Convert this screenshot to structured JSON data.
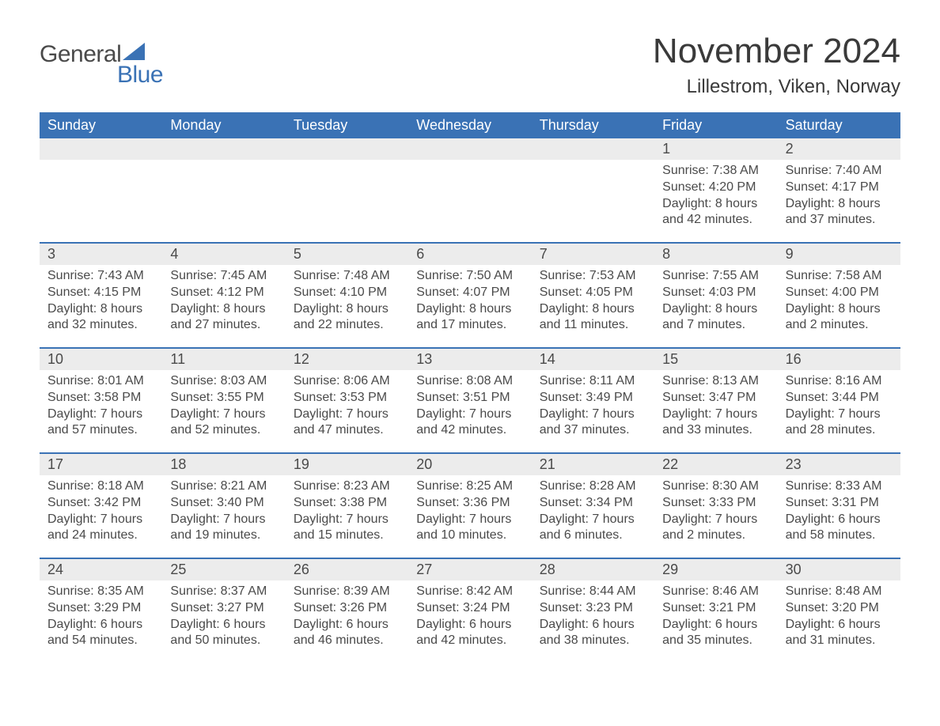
{
  "logo": {
    "text1": "General",
    "text2": "Blue",
    "icon_color": "#3a72b5"
  },
  "title": "November 2024",
  "location": "Lillestrom, Viken, Norway",
  "colors": {
    "header_bg": "#3a72b5",
    "header_text": "#ffffff",
    "daynum_bg": "#ececec",
    "text": "#4a4a4a",
    "rule": "#3a72b5",
    "background": "#ffffff"
  },
  "typography": {
    "title_fontsize": 44,
    "location_fontsize": 24,
    "header_fontsize": 18,
    "daynum_fontsize": 18,
    "body_fontsize": 16
  },
  "layout": {
    "columns": 7,
    "rows": 5
  },
  "day_headers": [
    "Sunday",
    "Monday",
    "Tuesday",
    "Wednesday",
    "Thursday",
    "Friday",
    "Saturday"
  ],
  "weeks": [
    [
      {
        "n": "",
        "sunrise": "",
        "sunset": "",
        "daylight": ""
      },
      {
        "n": "",
        "sunrise": "",
        "sunset": "",
        "daylight": ""
      },
      {
        "n": "",
        "sunrise": "",
        "sunset": "",
        "daylight": ""
      },
      {
        "n": "",
        "sunrise": "",
        "sunset": "",
        "daylight": ""
      },
      {
        "n": "",
        "sunrise": "",
        "sunset": "",
        "daylight": ""
      },
      {
        "n": "1",
        "sunrise": "Sunrise: 7:38 AM",
        "sunset": "Sunset: 4:20 PM",
        "daylight": "Daylight: 8 hours and 42 minutes."
      },
      {
        "n": "2",
        "sunrise": "Sunrise: 7:40 AM",
        "sunset": "Sunset: 4:17 PM",
        "daylight": "Daylight: 8 hours and 37 minutes."
      }
    ],
    [
      {
        "n": "3",
        "sunrise": "Sunrise: 7:43 AM",
        "sunset": "Sunset: 4:15 PM",
        "daylight": "Daylight: 8 hours and 32 minutes."
      },
      {
        "n": "4",
        "sunrise": "Sunrise: 7:45 AM",
        "sunset": "Sunset: 4:12 PM",
        "daylight": "Daylight: 8 hours and 27 minutes."
      },
      {
        "n": "5",
        "sunrise": "Sunrise: 7:48 AM",
        "sunset": "Sunset: 4:10 PM",
        "daylight": "Daylight: 8 hours and 22 minutes."
      },
      {
        "n": "6",
        "sunrise": "Sunrise: 7:50 AM",
        "sunset": "Sunset: 4:07 PM",
        "daylight": "Daylight: 8 hours and 17 minutes."
      },
      {
        "n": "7",
        "sunrise": "Sunrise: 7:53 AM",
        "sunset": "Sunset: 4:05 PM",
        "daylight": "Daylight: 8 hours and 11 minutes."
      },
      {
        "n": "8",
        "sunrise": "Sunrise: 7:55 AM",
        "sunset": "Sunset: 4:03 PM",
        "daylight": "Daylight: 8 hours and 7 minutes."
      },
      {
        "n": "9",
        "sunrise": "Sunrise: 7:58 AM",
        "sunset": "Sunset: 4:00 PM",
        "daylight": "Daylight: 8 hours and 2 minutes."
      }
    ],
    [
      {
        "n": "10",
        "sunrise": "Sunrise: 8:01 AM",
        "sunset": "Sunset: 3:58 PM",
        "daylight": "Daylight: 7 hours and 57 minutes."
      },
      {
        "n": "11",
        "sunrise": "Sunrise: 8:03 AM",
        "sunset": "Sunset: 3:55 PM",
        "daylight": "Daylight: 7 hours and 52 minutes."
      },
      {
        "n": "12",
        "sunrise": "Sunrise: 8:06 AM",
        "sunset": "Sunset: 3:53 PM",
        "daylight": "Daylight: 7 hours and 47 minutes."
      },
      {
        "n": "13",
        "sunrise": "Sunrise: 8:08 AM",
        "sunset": "Sunset: 3:51 PM",
        "daylight": "Daylight: 7 hours and 42 minutes."
      },
      {
        "n": "14",
        "sunrise": "Sunrise: 8:11 AM",
        "sunset": "Sunset: 3:49 PM",
        "daylight": "Daylight: 7 hours and 37 minutes."
      },
      {
        "n": "15",
        "sunrise": "Sunrise: 8:13 AM",
        "sunset": "Sunset: 3:47 PM",
        "daylight": "Daylight: 7 hours and 33 minutes."
      },
      {
        "n": "16",
        "sunrise": "Sunrise: 8:16 AM",
        "sunset": "Sunset: 3:44 PM",
        "daylight": "Daylight: 7 hours and 28 minutes."
      }
    ],
    [
      {
        "n": "17",
        "sunrise": "Sunrise: 8:18 AM",
        "sunset": "Sunset: 3:42 PM",
        "daylight": "Daylight: 7 hours and 24 minutes."
      },
      {
        "n": "18",
        "sunrise": "Sunrise: 8:21 AM",
        "sunset": "Sunset: 3:40 PM",
        "daylight": "Daylight: 7 hours and 19 minutes."
      },
      {
        "n": "19",
        "sunrise": "Sunrise: 8:23 AM",
        "sunset": "Sunset: 3:38 PM",
        "daylight": "Daylight: 7 hours and 15 minutes."
      },
      {
        "n": "20",
        "sunrise": "Sunrise: 8:25 AM",
        "sunset": "Sunset: 3:36 PM",
        "daylight": "Daylight: 7 hours and 10 minutes."
      },
      {
        "n": "21",
        "sunrise": "Sunrise: 8:28 AM",
        "sunset": "Sunset: 3:34 PM",
        "daylight": "Daylight: 7 hours and 6 minutes."
      },
      {
        "n": "22",
        "sunrise": "Sunrise: 8:30 AM",
        "sunset": "Sunset: 3:33 PM",
        "daylight": "Daylight: 7 hours and 2 minutes."
      },
      {
        "n": "23",
        "sunrise": "Sunrise: 8:33 AM",
        "sunset": "Sunset: 3:31 PM",
        "daylight": "Daylight: 6 hours and 58 minutes."
      }
    ],
    [
      {
        "n": "24",
        "sunrise": "Sunrise: 8:35 AM",
        "sunset": "Sunset: 3:29 PM",
        "daylight": "Daylight: 6 hours and 54 minutes."
      },
      {
        "n": "25",
        "sunrise": "Sunrise: 8:37 AM",
        "sunset": "Sunset: 3:27 PM",
        "daylight": "Daylight: 6 hours and 50 minutes."
      },
      {
        "n": "26",
        "sunrise": "Sunrise: 8:39 AM",
        "sunset": "Sunset: 3:26 PM",
        "daylight": "Daylight: 6 hours and 46 minutes."
      },
      {
        "n": "27",
        "sunrise": "Sunrise: 8:42 AM",
        "sunset": "Sunset: 3:24 PM",
        "daylight": "Daylight: 6 hours and 42 minutes."
      },
      {
        "n": "28",
        "sunrise": "Sunrise: 8:44 AM",
        "sunset": "Sunset: 3:23 PM",
        "daylight": "Daylight: 6 hours and 38 minutes."
      },
      {
        "n": "29",
        "sunrise": "Sunrise: 8:46 AM",
        "sunset": "Sunset: 3:21 PM",
        "daylight": "Daylight: 6 hours and 35 minutes."
      },
      {
        "n": "30",
        "sunrise": "Sunrise: 8:48 AM",
        "sunset": "Sunset: 3:20 PM",
        "daylight": "Daylight: 6 hours and 31 minutes."
      }
    ]
  ]
}
